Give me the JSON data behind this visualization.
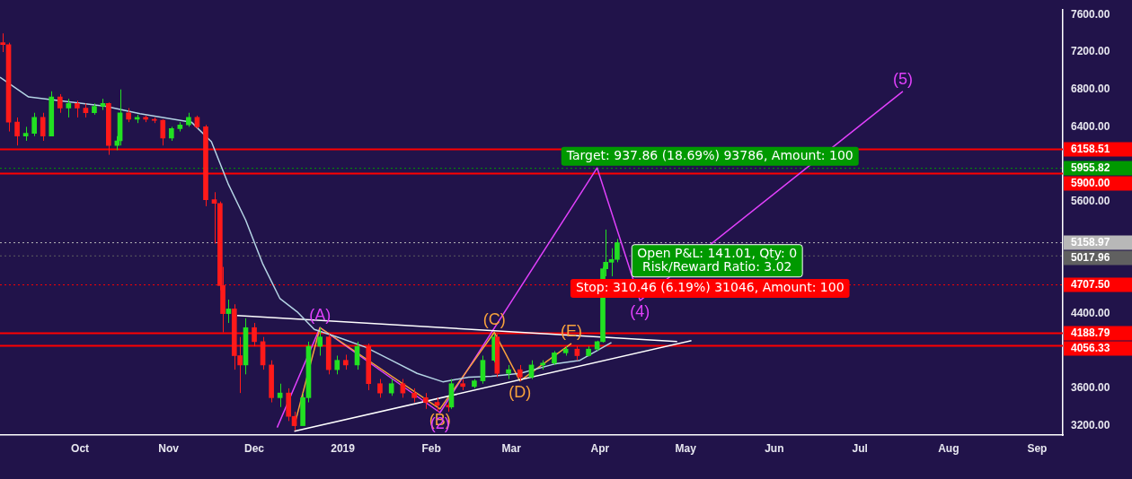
{
  "chart_data": {
    "type": "candlestick",
    "x": [
      "2018-09-04",
      "2018-09-06",
      "2018-09-09",
      "2018-09-12",
      "2018-09-15",
      "2018-09-18",
      "2018-09-21",
      "2018-09-24",
      "2018-09-27",
      "2018-09-30",
      "2018-10-03",
      "2018-10-06",
      "2018-10-09",
      "2018-10-11",
      "2018-10-14",
      "2018-10-15",
      "2018-10-18",
      "2018-10-21",
      "2018-10-24",
      "2018-10-27",
      "2018-10-30",
      "2018-11-02",
      "2018-11-05",
      "2018-11-08",
      "2018-11-11",
      "2018-11-14",
      "2018-11-17",
      "2018-11-19",
      "2018-11-20",
      "2018-11-22",
      "2018-11-24",
      "2018-11-26",
      "2018-11-28",
      "2018-12-01",
      "2018-12-04",
      "2018-12-07",
      "2018-12-10",
      "2018-12-13",
      "2018-12-15",
      "2018-12-18",
      "2018-12-20",
      "2018-12-24",
      "2018-12-27",
      "2018-12-30",
      "2019-01-02",
      "2019-01-06",
      "2019-01-10",
      "2019-01-14",
      "2019-01-18",
      "2019-01-22",
      "2019-01-26",
      "2019-01-30",
      "2019-02-03",
      "2019-02-07",
      "2019-02-08",
      "2019-02-12",
      "2019-02-16",
      "2019-02-19",
      "2019-02-23",
      "2019-02-24",
      "2019-02-28",
      "2019-03-04",
      "2019-03-08",
      "2019-03-12",
      "2019-03-16",
      "2019-03-20",
      "2019-03-24",
      "2019-03-28",
      "2019-03-31",
      "2019-04-02",
      "2019-04-03",
      "2019-04-05",
      "2019-04-07"
    ],
    "ohlc": [
      [
        7300,
        7400,
        7200,
        7280
      ],
      [
        7280,
        7300,
        6350,
        6450
      ],
      [
        6450,
        6500,
        6200,
        6300
      ],
      [
        6300,
        6400,
        6250,
        6330
      ],
      [
        6330,
        6550,
        6300,
        6500
      ],
      [
        6500,
        6550,
        6250,
        6300
      ],
      [
        6300,
        6780,
        6300,
        6720
      ],
      [
        6720,
        6750,
        6550,
        6600
      ],
      [
        6600,
        6700,
        6500,
        6650
      ],
      [
        6650,
        6680,
        6500,
        6600
      ],
      [
        6600,
        6650,
        6500,
        6550
      ],
      [
        6550,
        6650,
        6530,
        6620
      ],
      [
        6620,
        6700,
        6580,
        6650
      ],
      [
        6650,
        6660,
        6100,
        6200
      ],
      [
        6200,
        6300,
        6150,
        6250
      ],
      [
        6250,
        6800,
        6200,
        6550
      ],
      [
        6550,
        6600,
        6450,
        6480
      ],
      [
        6480,
        6530,
        6440,
        6500
      ],
      [
        6500,
        6520,
        6450,
        6480
      ],
      [
        6480,
        6500,
        6440,
        6470
      ],
      [
        6470,
        6480,
        6200,
        6280
      ],
      [
        6280,
        6400,
        6250,
        6380
      ],
      [
        6380,
        6450,
        6350,
        6420
      ],
      [
        6420,
        6550,
        6400,
        6500
      ],
      [
        6500,
        6520,
        6380,
        6400
      ],
      [
        6400,
        6420,
        5550,
        5620
      ],
      [
        5620,
        5700,
        5150,
        5580
      ],
      [
        5580,
        5600,
        4650,
        4700
      ],
      [
        4700,
        4900,
        4200,
        4400
      ],
      [
        4400,
        4550,
        4300,
        4450
      ],
      [
        4450,
        4500,
        3800,
        3950
      ],
      [
        3950,
        4150,
        3550,
        3850
      ],
      [
        3850,
        4350,
        3750,
        4250
      ],
      [
        4250,
        4300,
        4050,
        4100
      ],
      [
        4100,
        4150,
        3800,
        3850
      ],
      [
        3850,
        3900,
        3450,
        3500
      ],
      [
        3500,
        3650,
        3400,
        3550
      ],
      [
        3550,
        3600,
        3250,
        3300
      ],
      [
        3300,
        3350,
        3150,
        3200
      ],
      [
        3200,
        3550,
        3200,
        3500
      ],
      [
        3500,
        4100,
        3450,
        4050
      ],
      [
        4050,
        4250,
        3950,
        4150
      ],
      [
        4150,
        4180,
        3750,
        3800
      ],
      [
        3800,
        3950,
        3750,
        3900
      ],
      [
        3900,
        3960,
        3800,
        3850
      ],
      [
        3850,
        4100,
        3800,
        4050
      ],
      [
        4050,
        4080,
        3580,
        3650
      ],
      [
        3650,
        3700,
        3500,
        3550
      ],
      [
        3550,
        3700,
        3520,
        3650
      ],
      [
        3650,
        3700,
        3500,
        3550
      ],
      [
        3550,
        3600,
        3450,
        3500
      ],
      [
        3500,
        3550,
        3380,
        3450
      ],
      [
        3450,
        3500,
        3350,
        3420
      ],
      [
        3420,
        3450,
        3350,
        3400
      ],
      [
        3400,
        3700,
        3380,
        3650
      ],
      [
        3650,
        3700,
        3580,
        3620
      ],
      [
        3620,
        3700,
        3600,
        3680
      ],
      [
        3680,
        3950,
        3650,
        3900
      ],
      [
        3900,
        4180,
        3880,
        4150
      ],
      [
        4150,
        4180,
        3720,
        3760
      ],
      [
        3760,
        3850,
        3700,
        3800
      ],
      [
        3800,
        3850,
        3680,
        3720
      ],
      [
        3720,
        3900,
        3700,
        3850
      ],
      [
        3850,
        3900,
        3800,
        3870
      ],
      [
        3870,
        4000,
        3850,
        3980
      ],
      [
        3980,
        4050,
        3950,
        4020
      ],
      [
        4020,
        4050,
        3900,
        3950
      ],
      [
        3950,
        4050,
        3940,
        4020
      ],
      [
        4020,
        4110,
        4000,
        4100
      ],
      [
        4100,
        4900,
        4090,
        4880
      ],
      [
        4880,
        5300,
        4800,
        4950
      ],
      [
        4950,
        5100,
        4800,
        4980
      ],
      [
        4980,
        5200,
        4950,
        5158.97
      ]
    ],
    "colors": [
      "#ff1a1a",
      "#ff1a1a",
      "#ff1a1a",
      "#22e022",
      "#22e022",
      "#ff1a1a",
      "#22e022",
      "#ff1a1a",
      "#22e022",
      "#ff1a1a",
      "#ff1a1a",
      "#22e022",
      "#22e022",
      "#ff1a1a",
      "#22e022",
      "#22e022",
      "#ff1a1a",
      "#22e022",
      "#ff1a1a",
      "#ff1a1a",
      "#ff1a1a",
      "#22e022",
      "#22e022",
      "#22e022",
      "#ff1a1a",
      "#ff1a1a",
      "#ff1a1a",
      "#ff1a1a",
      "#ff1a1a",
      "#22e022",
      "#ff1a1a",
      "#ff1a1a",
      "#22e022",
      "#ff1a1a",
      "#ff1a1a",
      "#ff1a1a",
      "#22e022",
      "#ff1a1a",
      "#ff1a1a",
      "#22e022",
      "#22e022",
      "#22e022",
      "#ff1a1a",
      "#22e022",
      "#ff1a1a",
      "#22e022",
      "#ff1a1a",
      "#ff1a1a",
      "#22e022",
      "#ff1a1a",
      "#ff1a1a",
      "#ff1a1a",
      "#ff1a1a",
      "#ff1a1a",
      "#22e022",
      "#ff1a1a",
      "#22e022",
      "#22e022",
      "#22e022",
      "#ff1a1a",
      "#22e022",
      "#ff1a1a",
      "#22e022",
      "#22e022",
      "#22e022",
      "#22e022",
      "#ff1a1a",
      "#22e022",
      "#22e022",
      "#22e022",
      "#22e022",
      "#22e022",
      "#22e022"
    ],
    "series": [
      {
        "type": "line",
        "color": "#b4d4e4",
        "x": [
          "2018-09-03",
          "2018-09-13",
          "2018-10-10",
          "2018-10-22",
          "2018-11-09",
          "2018-11-16",
          "2018-11-22",
          "2018-11-28",
          "2018-12-04",
          "2018-12-10",
          "2018-12-16",
          "2018-12-22",
          "2018-12-31",
          "2019-01-09",
          "2019-01-18",
          "2019-01-27",
          "2019-02-05",
          "2019-02-14",
          "2019-02-22",
          "2019-03-04",
          "2019-03-16",
          "2019-03-25",
          "2019-04-05"
        ],
        "values": [
          6930,
          6720,
          6620,
          6540,
          6450,
          6240,
          5780,
          5400,
          4930,
          4560,
          4420,
          4230,
          4140,
          4040,
          3900,
          3760,
          3670,
          3720,
          3730,
          3760,
          3860,
          3900,
          4090
        ]
      },
      {
        "type": "line",
        "color": "#ffffff",
        "x": [
          "2018-11-25",
          "2019-04-28"
        ],
        "values": [
          4380,
          4100
        ]
      },
      {
        "type": "line",
        "color": "#ffffff",
        "x": [
          "2018-12-15",
          "2019-05-03"
        ],
        "values": [
          3140,
          4110
        ]
      },
      {
        "type": "line",
        "color": "#f7a13c",
        "x": [
          "2018-12-15",
          "2018-12-24",
          "2019-02-04",
          "2019-02-23",
          "2019-03-04",
          "2019-03-22"
        ],
        "values": [
          3200,
          4250,
          3380,
          4200,
          3680,
          4080
        ]
      },
      {
        "type": "line",
        "color": "#e040fb",
        "x": [
          "2018-12-09",
          "2018-12-24",
          "2019-02-04",
          "2019-03-31",
          "2019-04-15",
          "2019-07-16"
        ],
        "values": [
          3180,
          4250,
          3340,
          5960,
          4540,
          6780
        ]
      }
    ],
    "xlim": [
      "2018-09-03",
      "2019-09-10"
    ],
    "xticks": [
      {
        "value": "2018-10-01",
        "label": "Oct"
      },
      {
        "value": "2018-11-01",
        "label": "Nov"
      },
      {
        "value": "2018-12-01",
        "label": "Dec"
      },
      {
        "value": "2019-01-01",
        "label": "2019"
      },
      {
        "value": "2019-02-01",
        "label": "Feb"
      },
      {
        "value": "2019-03-01",
        "label": "Mar"
      },
      {
        "value": "2019-04-01",
        "label": "Apr"
      },
      {
        "value": "2019-05-01",
        "label": "May"
      },
      {
        "value": "2019-06-01",
        "label": "Jun"
      },
      {
        "value": "2019-07-01",
        "label": "Jul"
      },
      {
        "value": "2019-08-01",
        "label": "Aug"
      },
      {
        "value": "2019-09-01",
        "label": "Sep"
      }
    ],
    "ylim": [
      3100,
      7650
    ],
    "yticks": [
      {
        "value": 3200,
        "label": "3200.00"
      },
      {
        "value": 3600,
        "label": "3600.00"
      },
      {
        "value": 4400,
        "label": "4400.00"
      },
      {
        "value": 5600,
        "label": "5600.00"
      },
      {
        "value": 6400,
        "label": "6400.00"
      },
      {
        "value": 6800,
        "label": "6800.00"
      },
      {
        "value": 7200,
        "label": "7200.00"
      },
      {
        "value": 7600,
        "label": "7600.00"
      }
    ],
    "ref_lines": [
      {
        "axis": "y",
        "value": 6158.51,
        "label": "6158.51",
        "color": "#ff0000",
        "line_style": "solid"
      },
      {
        "axis": "y",
        "value": 5955.82,
        "label": "5955.82",
        "color": "#009900",
        "line_style": "dotted"
      },
      {
        "axis": "y",
        "value": 5900,
        "label": "5900.00",
        "color": "#ff0000",
        "line_style": "solid"
      },
      {
        "axis": "y",
        "value": 5158.97,
        "label": "5158.97",
        "color": "#b8b8b8",
        "line_style": "dotted"
      },
      {
        "axis": "y",
        "value": 5017.96,
        "label": "5017.96",
        "color": "#606060",
        "line_style": "dotted"
      },
      {
        "axis": "y",
        "value": 4707.5,
        "label": "4707.50",
        "color": "#ff0000",
        "line_style": "dotted"
      },
      {
        "axis": "y",
        "value": 4188.79,
        "label": "4188.79",
        "color": "#ff0000",
        "line_style": "solid"
      },
      {
        "axis": "y",
        "value": 4056.33,
        "label": "4056.33",
        "color": "#ff0000",
        "line_style": "solid"
      }
    ],
    "annotations": [
      {
        "text": "(A)",
        "x": "2018-12-24",
        "y": 4250
      },
      {
        "text": "(B)",
        "x": "2019-02-04",
        "y": 3380
      },
      {
        "text": "(C)",
        "x": "2019-02-23",
        "y": 4200
      },
      {
        "text": "(D)",
        "x": "2019-03-04",
        "y": 3680
      },
      {
        "text": "(E)",
        "x": "2019-03-22",
        "y": 4080
      },
      {
        "text": "(2)",
        "x": "2019-02-04",
        "y": 3340
      },
      {
        "text": "(4)",
        "x": "2019-04-15",
        "y": 4540
      },
      {
        "text": "(5)",
        "x": "2019-07-16",
        "y": 6780
      },
      "Target: 937.86 (18.69%) 93786, Amount: 100",
      "Open P&L: 141.01, Qty: 0\nRisk/Reward Ratio: 3.02",
      "Stop: 310.46 (6.19%) 31046, Amount: 100"
    ],
    "legend": false
  }
}
